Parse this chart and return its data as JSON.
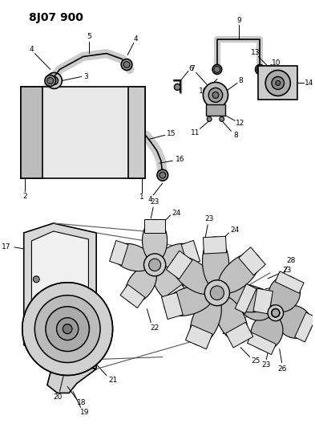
{
  "title": "8J07 900",
  "bg": "#ffffff",
  "lc": "#000000",
  "gray1": "#cccccc",
  "gray2": "#aaaaaa",
  "gray3": "#888888",
  "gray4": "#dddddd",
  "fig_w": 3.93,
  "fig_h": 5.33,
  "dpi": 100
}
